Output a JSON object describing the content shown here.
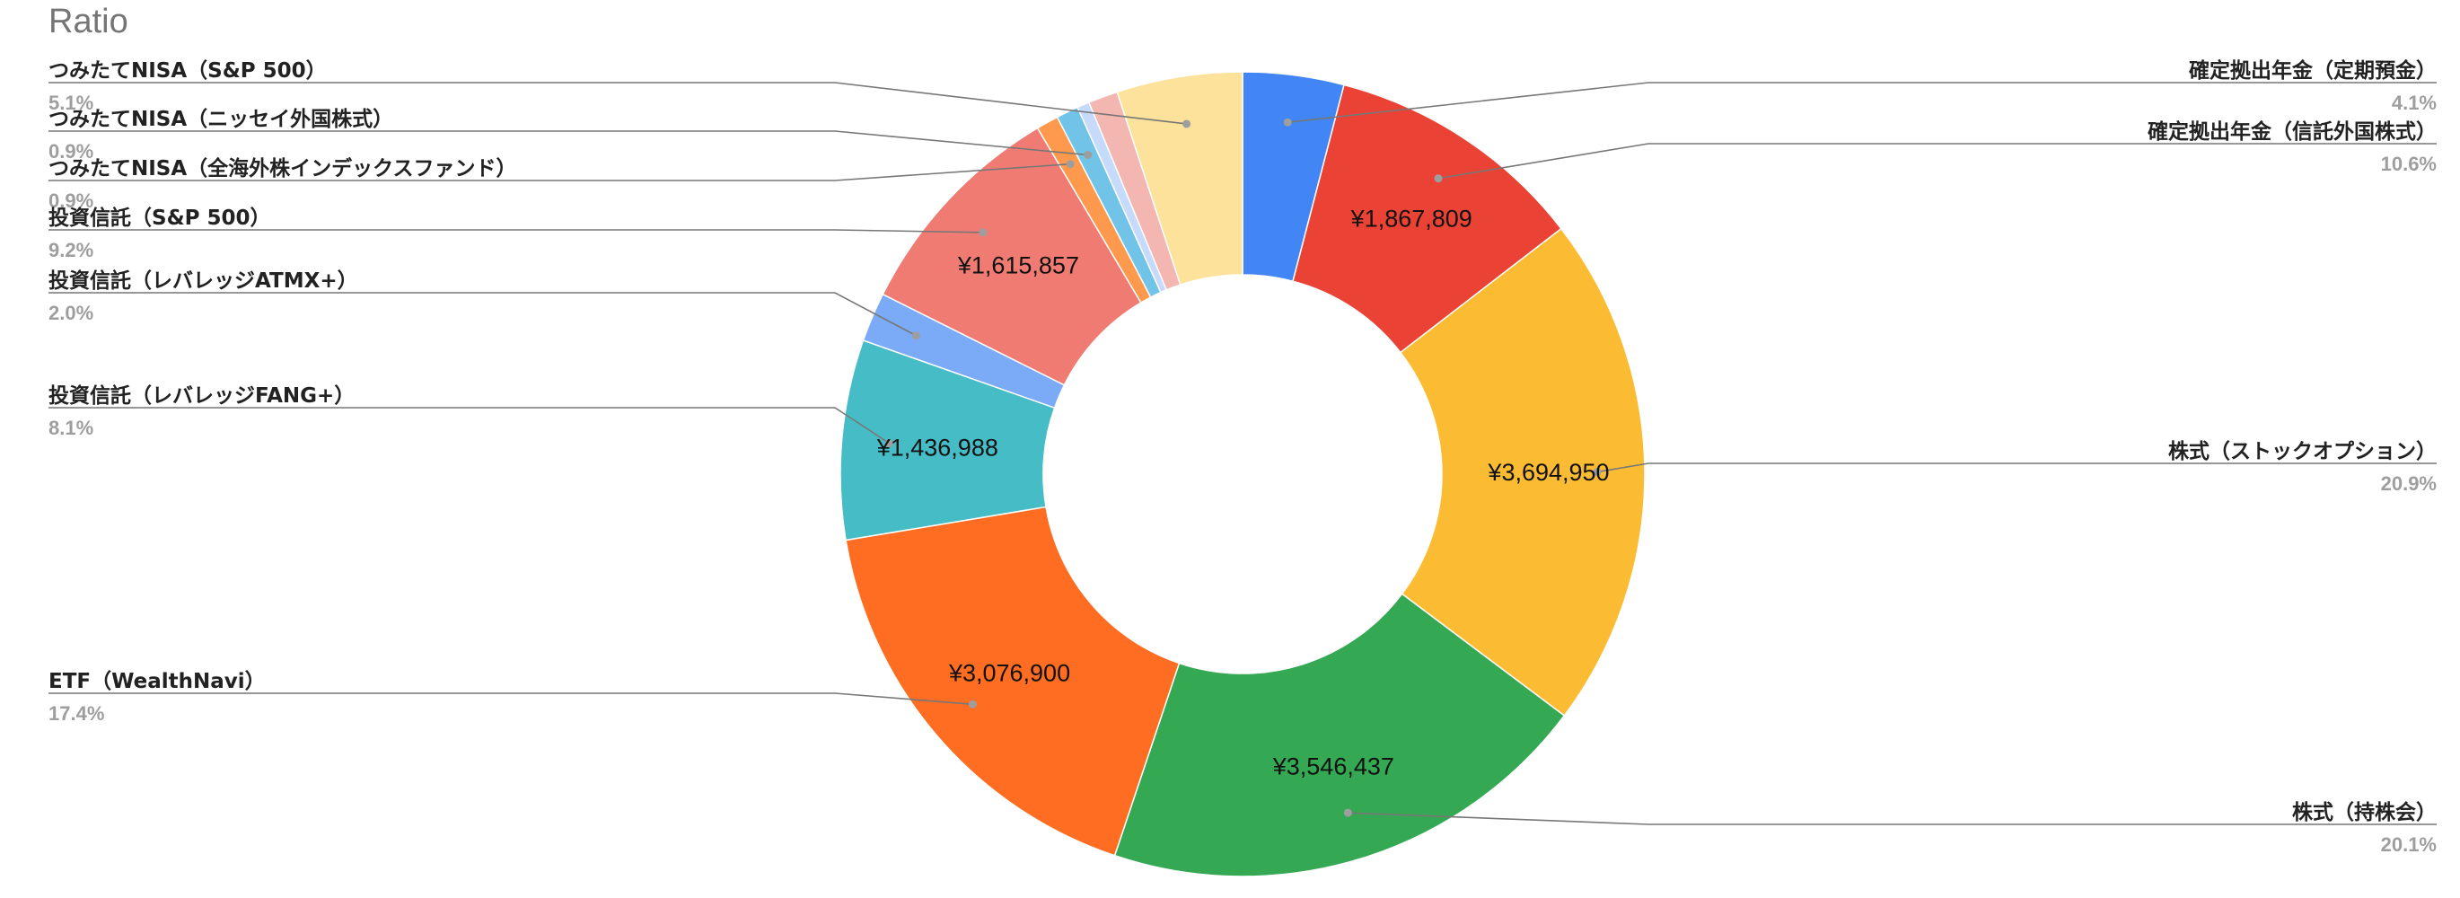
{
  "chart_data": {
    "type": "pie",
    "style": "donut",
    "title": "Ratio",
    "legend": "callout-labels",
    "slices": [
      {
        "name": "確定拠出年金（定期預金）",
        "pct_label": "4.1%",
        "percent": 4.1,
        "value_label": "",
        "color": "#4285F4",
        "side": "right"
      },
      {
        "name": "確定拠出年金（信託外国株式）",
        "pct_label": "10.6%",
        "percent": 10.6,
        "value_label": "¥1,867,809",
        "color": "#EA4335",
        "side": "right"
      },
      {
        "name": "株式（ストックオプション）",
        "pct_label": "20.9%",
        "percent": 20.9,
        "value_label": "¥3,694,950",
        "color": "#FBBC34",
        "side": "right"
      },
      {
        "name": "株式（持株会）",
        "pct_label": "20.1%",
        "percent": 20.1,
        "value_label": "¥3,546,437",
        "color": "#34A853",
        "side": "right"
      },
      {
        "name": "ETF（WealthNavi）",
        "pct_label": "17.4%",
        "percent": 17.4,
        "value_label": "¥3,076,900",
        "color": "#FF6D22",
        "side": "left"
      },
      {
        "name": "投資信託（レバレッジFANG+）",
        "pct_label": "8.1%",
        "percent": 8.1,
        "value_label": "¥1,436,988",
        "color": "#46BDC6",
        "side": "left"
      },
      {
        "name": "投資信託（レバレッジATMX+）",
        "pct_label": "2.0%",
        "percent": 2.0,
        "value_label": "",
        "color": "#7BAAF7",
        "side": "left"
      },
      {
        "name": "投資信託（S&P 500）",
        "pct_label": "9.2%",
        "percent": 9.2,
        "value_label": "¥1,615,857",
        "color": "#F07B72",
        "side": "left"
      },
      {
        "name": "つみたてNISA（全海外株インデックスファンド）",
        "pct_label": "0.9%",
        "percent": 0.9,
        "value_label": "",
        "color": "#FF994D",
        "side": "left"
      },
      {
        "name": "つみたてNISA（ニッセイ外国株式）",
        "pct_label": "0.9%",
        "percent": 0.9,
        "value_label": "",
        "color": "#71C3E8",
        "side": "left"
      },
      {
        "name": "",
        "pct_label": "",
        "percent": 0.5,
        "value_label": "",
        "color": "#C6DAFC",
        "side": "none"
      },
      {
        "name": "",
        "pct_label": "",
        "percent": 1.2,
        "value_label": "",
        "color": "#F4B6B1",
        "side": "none"
      },
      {
        "name": "つみたてNISA（S&P 500）",
        "pct_label": "5.1%",
        "percent": 5.1,
        "value_label": "",
        "color": "#FCE29A",
        "side": "left"
      }
    ]
  }
}
